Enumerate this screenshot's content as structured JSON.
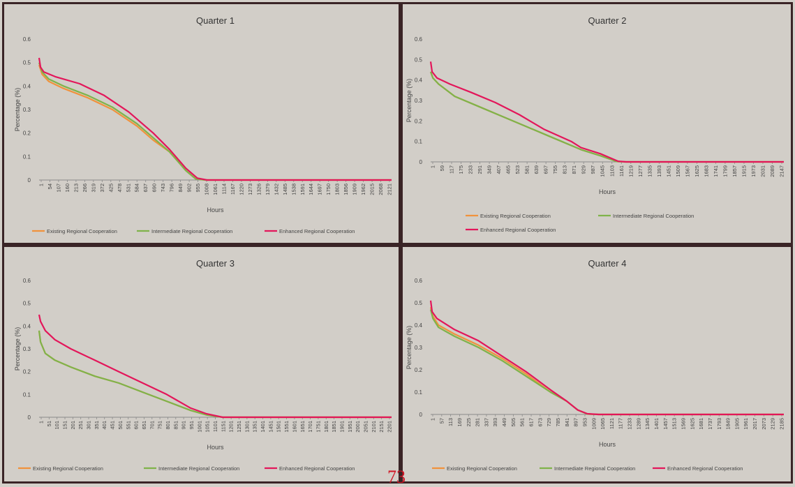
{
  "page_number": "73",
  "colors": {
    "existing": "#f0923c",
    "intermediate": "#7fb34a",
    "enhanced": "#e3165a"
  },
  "chart_data": [
    {
      "type": "line",
      "title": "Quarter 1",
      "xlabel": "Hours",
      "ylabel": "Percentage (%)",
      "ylim": [
        0,
        0.6
      ],
      "yticks": [
        "0",
        "0.1",
        "0.2",
        "0.3",
        "0.4",
        "0.5",
        "0.6"
      ],
      "x_ticks": [
        "1",
        "54",
        "107",
        "160",
        "213",
        "266",
        "319",
        "372",
        "425",
        "478",
        "531",
        "584",
        "637",
        "690",
        "743",
        "796",
        "849",
        "902",
        "955",
        "1008",
        "1061",
        "1114",
        "1167",
        "1220",
        "1273",
        "1326",
        "1379",
        "1432",
        "1485",
        "1538",
        "1591",
        "1644",
        "1697",
        "1750",
        "1803",
        "1856",
        "1909",
        "1962",
        "2015",
        "2068",
        "2121"
      ],
      "xlim": [
        1,
        2160
      ],
      "legend_position": "bottom",
      "series": [
        {
          "name": "Existing Regional Cooperation",
          "x": [
            1,
            20,
            60,
            150,
            300,
            450,
            600,
            700,
            800,
            900,
            960,
            1020,
            1100,
            2160
          ],
          "y": [
            0.49,
            0.45,
            0.42,
            0.39,
            0.35,
            0.3,
            0.23,
            0.17,
            0.12,
            0.04,
            0.005,
            0,
            0,
            0
          ]
        },
        {
          "name": "Intermediate Regional Cooperation",
          "x": [
            1,
            20,
            60,
            150,
            300,
            450,
            600,
            700,
            800,
            900,
            960,
            1020,
            1100,
            2160
          ],
          "y": [
            0.5,
            0.46,
            0.43,
            0.4,
            0.36,
            0.31,
            0.24,
            0.18,
            0.12,
            0.04,
            0.005,
            0,
            0,
            0
          ]
        },
        {
          "name": "Enhanced Regional Cooperation",
          "x": [
            1,
            10,
            30,
            100,
            250,
            400,
            550,
            700,
            800,
            900,
            970,
            1030,
            1100,
            2160
          ],
          "y": [
            0.52,
            0.48,
            0.46,
            0.44,
            0.41,
            0.36,
            0.29,
            0.2,
            0.13,
            0.05,
            0.008,
            0,
            0,
            0
          ]
        }
      ]
    },
    {
      "type": "line",
      "title": "Quarter 2",
      "xlabel": "Hours",
      "ylabel": "Percentage (%)",
      "ylim": [
        0,
        0.6
      ],
      "yticks": [
        "0",
        "0.1",
        "0.2",
        "0.3",
        "0.4",
        "0.5",
        "0.6"
      ],
      "x_ticks": [
        "1",
        "59",
        "117",
        "175",
        "233",
        "291",
        "349",
        "407",
        "465",
        "523",
        "581",
        "639",
        "697",
        "755",
        "813",
        "871",
        "929",
        "987",
        "1045",
        "1103",
        "1161",
        "1219",
        "1277",
        "1335",
        "1393",
        "1451",
        "1509",
        "1567",
        "1625",
        "1683",
        "1741",
        "1799",
        "1857",
        "1915",
        "1973",
        "2031",
        "2089",
        "2147"
      ],
      "xlim": [
        1,
        2184
      ],
      "legend_position": "bottom",
      "series": [
        {
          "name": "Existing Regional Cooperation",
          "x": [
            1,
            15,
            50,
            150,
            300,
            450,
            600,
            750,
            870,
            930,
            1050,
            1150,
            1200,
            2184
          ],
          "y": [
            0.44,
            0.41,
            0.38,
            0.32,
            0.27,
            0.22,
            0.17,
            0.12,
            0.08,
            0.06,
            0.03,
            0.002,
            0,
            0
          ]
        },
        {
          "name": "Intermediate Regional Cooperation",
          "x": [
            1,
            15,
            50,
            150,
            300,
            450,
            600,
            750,
            870,
            930,
            1050,
            1150,
            1200,
            2184
          ],
          "y": [
            0.44,
            0.41,
            0.38,
            0.32,
            0.27,
            0.22,
            0.17,
            0.12,
            0.08,
            0.06,
            0.03,
            0.002,
            0,
            0
          ]
        },
        {
          "name": "Enhanced Regional Cooperation",
          "x": [
            1,
            10,
            40,
            120,
            250,
            400,
            550,
            700,
            870,
            930,
            1050,
            1160,
            1210,
            2184
          ],
          "y": [
            0.49,
            0.44,
            0.41,
            0.38,
            0.34,
            0.29,
            0.23,
            0.16,
            0.1,
            0.07,
            0.04,
            0.003,
            0,
            0
          ]
        }
      ]
    },
    {
      "type": "line",
      "title": "Quarter 3",
      "xlabel": "Hours",
      "ylabel": "Percentage (%)",
      "ylim": [
        0,
        0.6
      ],
      "yticks": [
        "0",
        "0.1",
        "0.2",
        "0.3",
        "0.4",
        "0.5",
        "0.6"
      ],
      "x_ticks": [
        "1",
        "51",
        "101",
        "151",
        "201",
        "251",
        "301",
        "351",
        "401",
        "451",
        "501",
        "551",
        "601",
        "651",
        "701",
        "751",
        "801",
        "851",
        "901",
        "951",
        "1001",
        "1051",
        "1101",
        "1151",
        "1201",
        "1251",
        "1301",
        "1351",
        "1401",
        "1451",
        "1501",
        "1551",
        "1601",
        "1651",
        "1701",
        "1751",
        "1801",
        "1851",
        "1901",
        "1951",
        "2001",
        "2051",
        "2101",
        "2151",
        "2201"
      ],
      "xlim": [
        1,
        2208
      ],
      "legend_position": "bottom",
      "series": [
        {
          "name": "Existing Regional Cooperation",
          "x": [
            1,
            10,
            40,
            100,
            200,
            350,
            500,
            650,
            800,
            950,
            1050,
            1150,
            2208
          ],
          "y": [
            0.38,
            0.33,
            0.28,
            0.25,
            0.22,
            0.18,
            0.15,
            0.11,
            0.07,
            0.03,
            0.01,
            0,
            0
          ]
        },
        {
          "name": "Intermediate Regional Cooperation",
          "x": [
            1,
            10,
            40,
            100,
            200,
            350,
            500,
            650,
            800,
            950,
            1050,
            1150,
            2208
          ],
          "y": [
            0.38,
            0.33,
            0.28,
            0.25,
            0.22,
            0.18,
            0.15,
            0.11,
            0.07,
            0.03,
            0.01,
            0,
            0
          ]
        },
        {
          "name": "Enhanced Regional Cooperation",
          "x": [
            1,
            10,
            40,
            100,
            200,
            350,
            500,
            650,
            800,
            950,
            1050,
            1150,
            2208
          ],
          "y": [
            0.45,
            0.42,
            0.38,
            0.34,
            0.3,
            0.25,
            0.2,
            0.15,
            0.1,
            0.04,
            0.015,
            0,
            0
          ]
        }
      ]
    },
    {
      "type": "line",
      "title": "Quarter 4",
      "xlabel": "Hours",
      "ylabel": "Percentage (%)",
      "ylim": [
        0,
        0.6
      ],
      "yticks": [
        "0",
        "0.1",
        "0.2",
        "0.3",
        "0.4",
        "0.5",
        "0.6"
      ],
      "x_ticks": [
        "1",
        "57",
        "113",
        "169",
        "225",
        "281",
        "337",
        "393",
        "449",
        "505",
        "561",
        "617",
        "673",
        "729",
        "785",
        "841",
        "897",
        "953",
        "1009",
        "1065",
        "1121",
        "1177",
        "1233",
        "1289",
        "1345",
        "1401",
        "1457",
        "1513",
        "1569",
        "1625",
        "1681",
        "1737",
        "1793",
        "1849",
        "1905",
        "1961",
        "2017",
        "2073",
        "2129",
        "2185"
      ],
      "xlim": [
        1,
        2208
      ],
      "legend_position": "bottom",
      "series": [
        {
          "name": "Existing Regional Cooperation",
          "x": [
            1,
            15,
            50,
            150,
            300,
            450,
            600,
            750,
            850,
            920,
            980,
            1050,
            2208
          ],
          "y": [
            0.48,
            0.44,
            0.4,
            0.36,
            0.31,
            0.25,
            0.18,
            0.1,
            0.06,
            0.02,
            0.002,
            0,
            0
          ]
        },
        {
          "name": "Intermediate Regional Cooperation",
          "x": [
            1,
            15,
            50,
            150,
            300,
            450,
            600,
            750,
            850,
            920,
            980,
            1050,
            2208
          ],
          "y": [
            0.47,
            0.43,
            0.39,
            0.35,
            0.3,
            0.24,
            0.17,
            0.1,
            0.06,
            0.02,
            0.002,
            0,
            0
          ]
        },
        {
          "name": "Enhanced Regional Cooperation",
          "x": [
            1,
            10,
            40,
            150,
            300,
            450,
            600,
            750,
            850,
            920,
            980,
            1050,
            2208
          ],
          "y": [
            0.51,
            0.46,
            0.43,
            0.38,
            0.33,
            0.26,
            0.19,
            0.11,
            0.06,
            0.02,
            0.003,
            0,
            0
          ]
        }
      ]
    }
  ]
}
